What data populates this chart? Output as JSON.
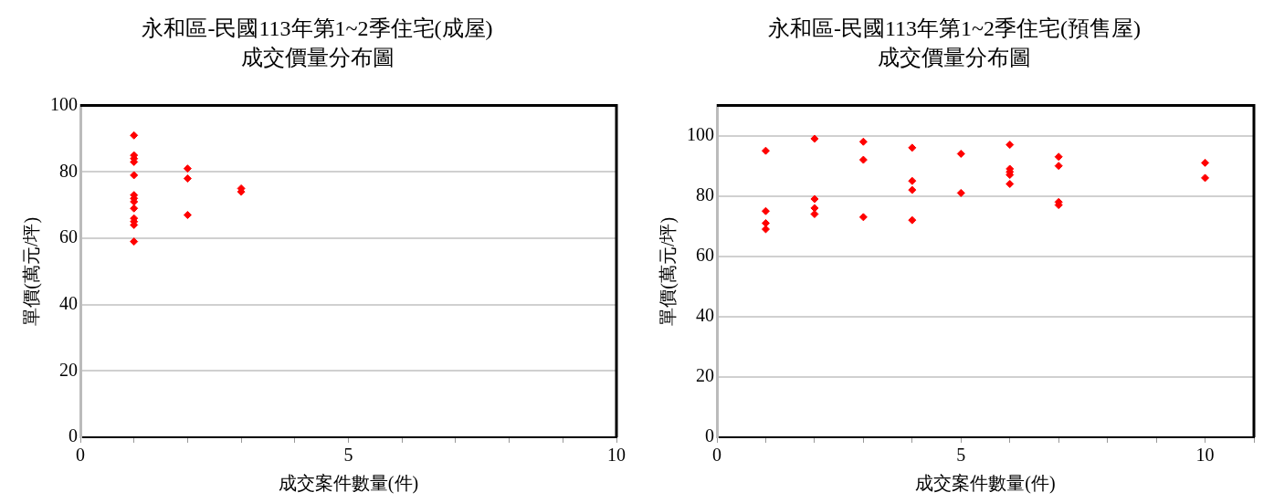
{
  "chart_data": [
    {
      "type": "scatter",
      "title": "永和區-民國113年第1~2季住宅(成屋)",
      "subtitle": "成交價量分布圖",
      "xlabel": "成交案件數量(件)",
      "ylabel": "單價(萬元/坪)",
      "marker": "diamond",
      "grid": "y",
      "xlim": [
        0,
        10
      ],
      "ylim": [
        0,
        100
      ],
      "xticks": [
        0,
        {
          "value": 1,
          "label": null
        },
        {
          "value": 2,
          "label": null
        },
        {
          "value": 3,
          "label": null
        },
        {
          "value": 4,
          "label": null
        },
        5,
        {
          "value": 6,
          "label": null
        },
        {
          "value": 7,
          "label": null
        },
        {
          "value": 8,
          "label": null
        },
        {
          "value": 9,
          "label": null
        },
        10
      ],
      "yticks": [
        0,
        20,
        40,
        60,
        80,
        100
      ],
      "series": [
        {
          "color": "#ff0000",
          "x": [
            1,
            1,
            1,
            1,
            1,
            1,
            1,
            1,
            1,
            1,
            1,
            1,
            1,
            2,
            2,
            2,
            3,
            3
          ],
          "values": [
            91,
            85,
            84,
            83,
            79,
            73,
            72,
            71,
            69,
            66,
            65,
            64,
            59,
            81,
            78,
            67,
            75,
            74
          ]
        }
      ]
    },
    {
      "type": "scatter",
      "title": "永和區-民國113年第1~2季住宅(預售屋)",
      "subtitle": "成交價量分布圖",
      "xlabel": "成交案件數量(件)",
      "ylabel": "單價(萬元/坪)",
      "marker": "diamond",
      "grid": "y",
      "xlim": [
        0,
        11
      ],
      "ylim": [
        0,
        110
      ],
      "xticks": [
        0,
        {
          "value": 1,
          "label": null
        },
        {
          "value": 2,
          "label": null
        },
        {
          "value": 3,
          "label": null
        },
        {
          "value": 4,
          "label": null
        },
        5,
        {
          "value": 6,
          "label": null
        },
        {
          "value": 7,
          "label": null
        },
        {
          "value": 8,
          "label": null
        },
        {
          "value": 9,
          "label": null
        },
        10,
        {
          "value": 11,
          "label": null
        }
      ],
      "yticks": [
        0,
        20,
        40,
        60,
        80,
        100
      ],
      "series": [
        {
          "color": "#ff0000",
          "x": [
            1,
            1,
            1,
            1,
            2,
            2,
            2,
            2,
            3,
            3,
            3,
            4,
            4,
            4,
            4,
            5,
            5,
            6,
            6,
            6,
            6,
            6,
            7,
            7,
            7,
            7,
            10,
            10
          ],
          "values": [
            95,
            75,
            71,
            69,
            99,
            79,
            76,
            74,
            98,
            92,
            73,
            96,
            85,
            82,
            72,
            94,
            81,
            97,
            89,
            88,
            87,
            84,
            93,
            90,
            78,
            77,
            91,
            86
          ]
        }
      ]
    }
  ]
}
